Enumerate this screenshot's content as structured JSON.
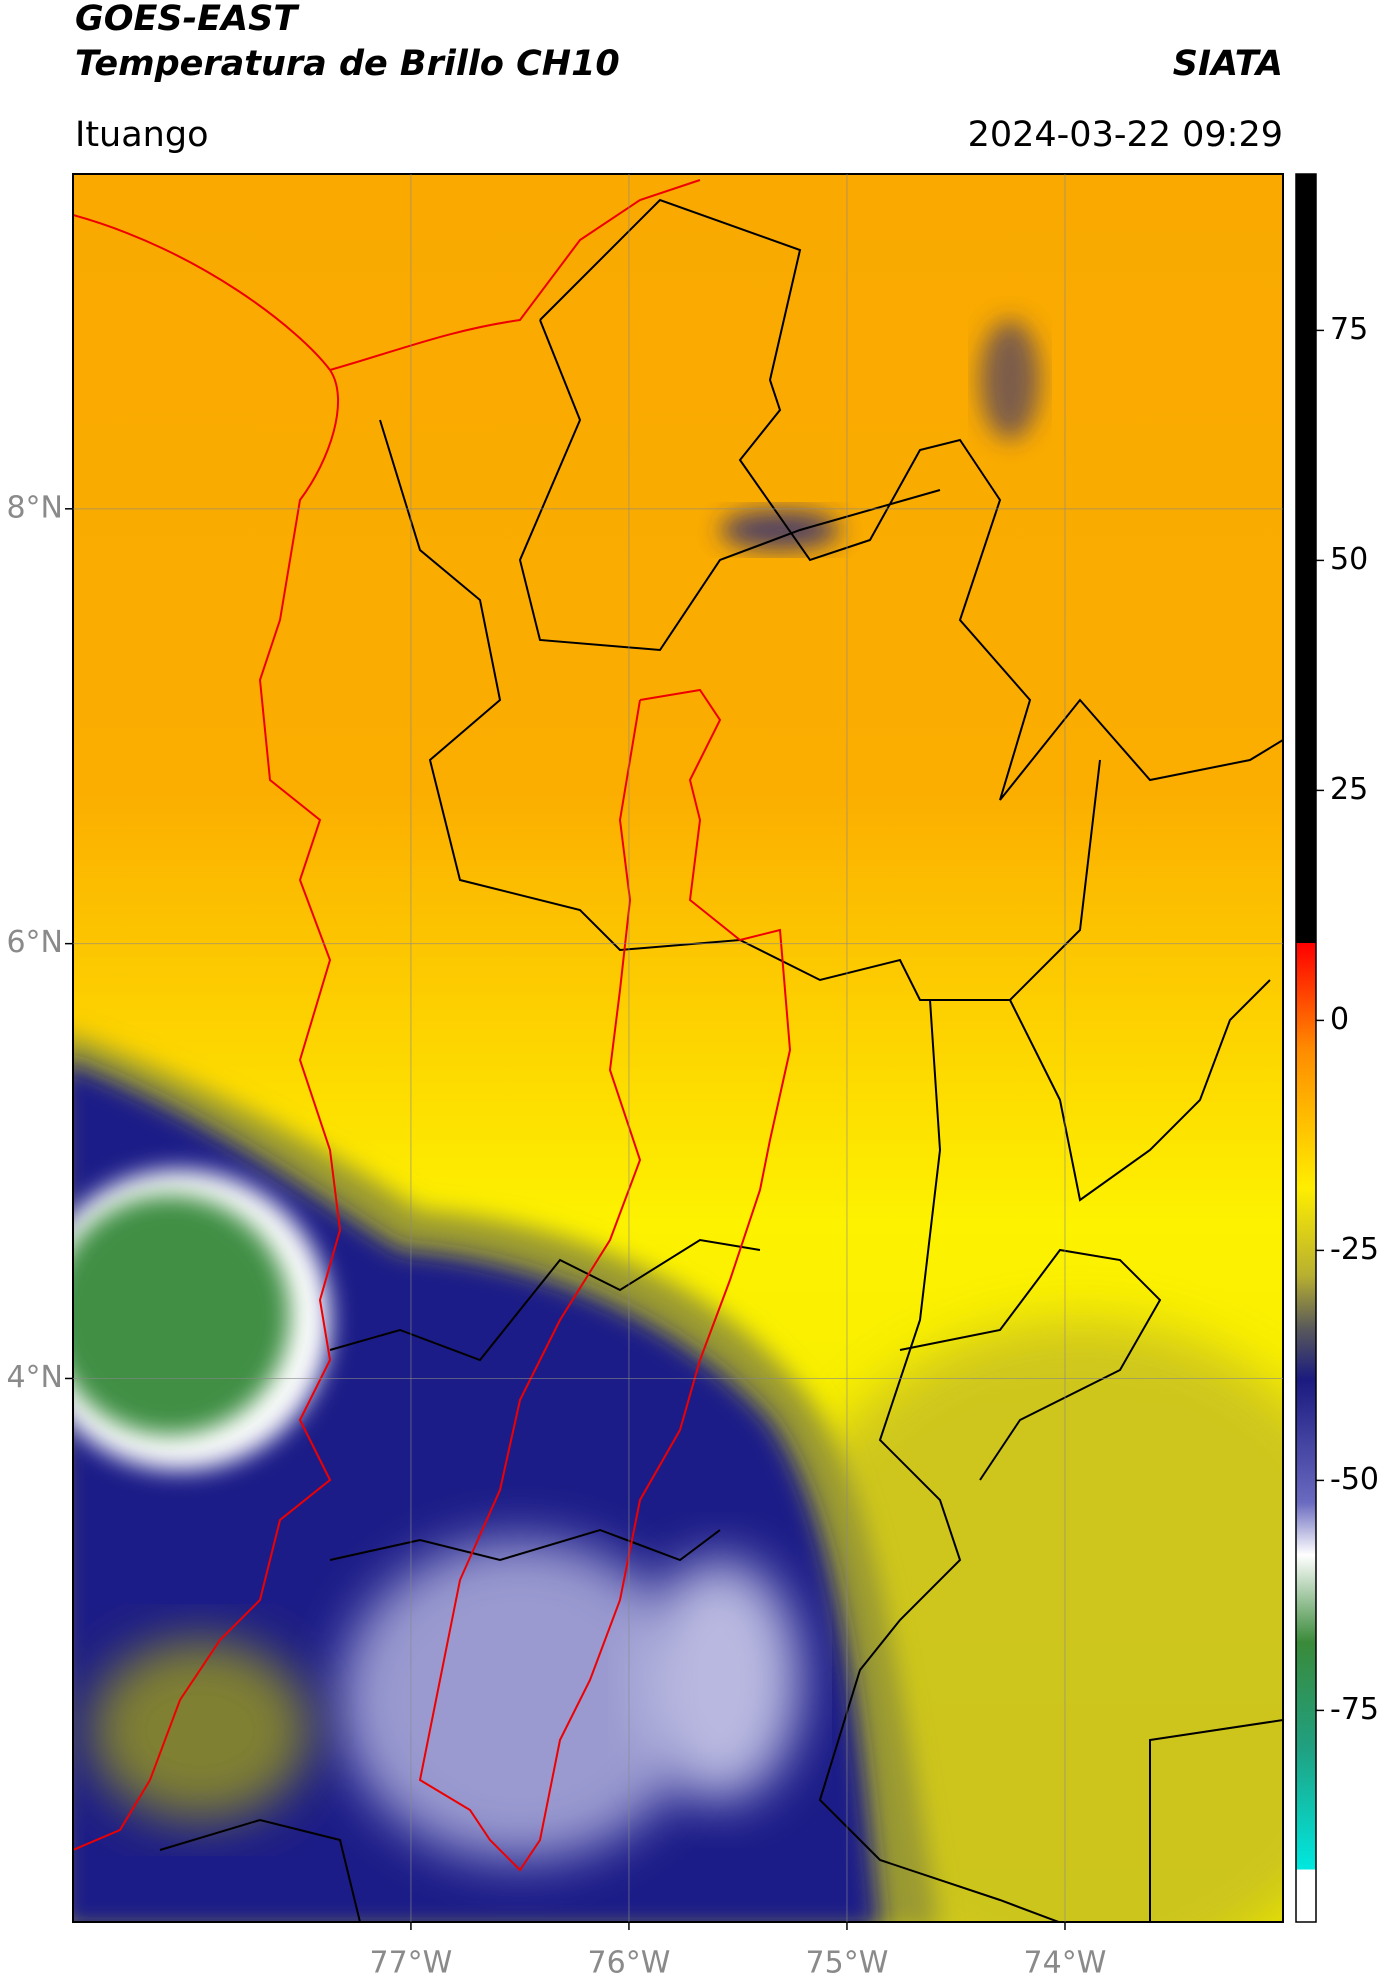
{
  "header": {
    "title": "GOES-EAST",
    "subtitle": "Temperatura de Brillo CH10",
    "source": "SIATA",
    "location": "Ituango",
    "datetime": "2024-03-22 09:29"
  },
  "map": {
    "xlim": [
      -78.55,
      -73.0
    ],
    "ylim": [
      1.5,
      9.54
    ],
    "xticks": [
      {
        "value": -77,
        "label": "77°W"
      },
      {
        "value": -76,
        "label": "76°W"
      },
      {
        "value": -75,
        "label": "75°W"
      },
      {
        "value": -74,
        "label": "74°W"
      }
    ],
    "yticks": [
      {
        "value": 8,
        "label": "8°N"
      },
      {
        "value": 6,
        "label": "6°N"
      },
      {
        "value": 4,
        "label": "4°N"
      }
    ],
    "grid": true
  },
  "colorbar": {
    "lim": [
      -98,
      92
    ],
    "ticks": [
      75,
      50,
      25,
      0,
      -25,
      -50,
      -75
    ]
  }
}
